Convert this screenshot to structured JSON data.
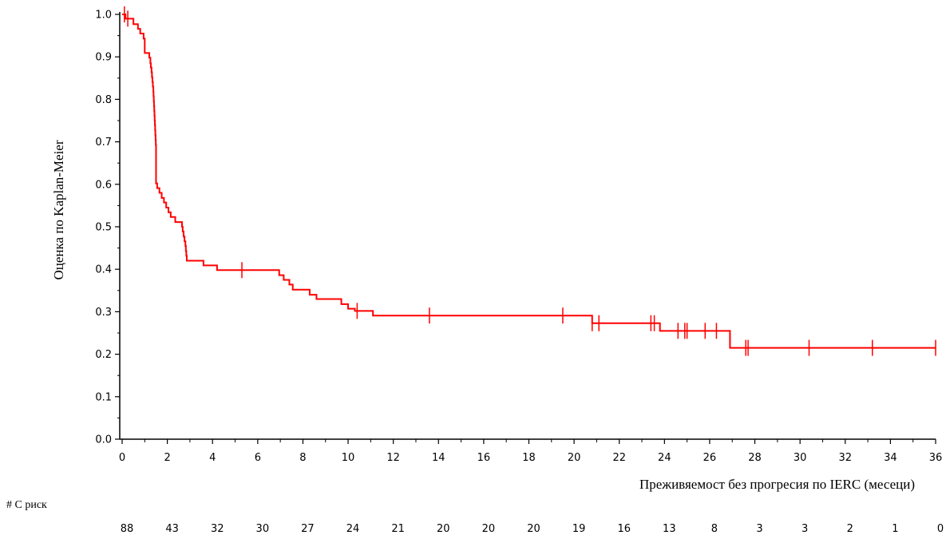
{
  "chart_data": {
    "type": "line",
    "subtype": "kaplan-meier-step",
    "title": "",
    "xlabel": "Преживяемост без прогресия по IERC (месеци)",
    "ylabel": "Оценка по Kaplan-Meier",
    "xlim": [
      0,
      36
    ],
    "ylim": [
      0,
      1.0
    ],
    "x_ticks": [
      0,
      2,
      4,
      6,
      8,
      10,
      12,
      14,
      16,
      18,
      20,
      22,
      24,
      26,
      28,
      30,
      32,
      34,
      36
    ],
    "y_ticks": [
      "0.0",
      "0.1",
      "0.2",
      "0.3",
      "0.4",
      "0.5",
      "0.6",
      "0.7",
      "0.8",
      "0.9",
      "1.0"
    ],
    "grid": false,
    "legend": "none",
    "line_color": "#ff0000",
    "steps": [
      [
        0.0,
        1.0
      ],
      [
        0.15,
        0.99
      ],
      [
        0.5,
        0.977
      ],
      [
        0.7,
        0.966
      ],
      [
        0.8,
        0.955
      ],
      [
        0.95,
        0.943
      ],
      [
        1.0,
        0.932
      ],
      [
        1.0,
        0.92
      ],
      [
        1.0,
        0.909
      ],
      [
        1.2,
        0.898
      ],
      [
        1.25,
        0.885
      ],
      [
        1.27,
        0.875
      ],
      [
        1.3,
        0.864
      ],
      [
        1.32,
        0.852
      ],
      [
        1.34,
        0.841
      ],
      [
        1.36,
        0.83
      ],
      [
        1.38,
        0.818
      ],
      [
        1.39,
        0.807
      ],
      [
        1.4,
        0.795
      ],
      [
        1.41,
        0.784
      ],
      [
        1.42,
        0.773
      ],
      [
        1.43,
        0.761
      ],
      [
        1.44,
        0.75
      ],
      [
        1.45,
        0.739
      ],
      [
        1.46,
        0.727
      ],
      [
        1.47,
        0.716
      ],
      [
        1.48,
        0.705
      ],
      [
        1.49,
        0.693
      ],
      [
        1.5,
        0.682
      ],
      [
        1.5,
        0.67
      ],
      [
        1.5,
        0.659
      ],
      [
        1.5,
        0.648
      ],
      [
        1.5,
        0.636
      ],
      [
        1.5,
        0.625
      ],
      [
        1.5,
        0.614
      ],
      [
        1.5,
        0.602
      ],
      [
        1.55,
        0.591
      ],
      [
        1.65,
        0.58
      ],
      [
        1.75,
        0.568
      ],
      [
        1.85,
        0.557
      ],
      [
        1.95,
        0.545
      ],
      [
        2.05,
        0.534
      ],
      [
        2.15,
        0.523
      ],
      [
        2.35,
        0.511
      ],
      [
        2.65,
        0.5
      ],
      [
        2.68,
        0.489
      ],
      [
        2.72,
        0.477
      ],
      [
        2.76,
        0.466
      ],
      [
        2.8,
        0.455
      ],
      [
        2.82,
        0.443
      ],
      [
        2.84,
        0.432
      ],
      [
        2.86,
        0.42
      ],
      [
        3.6,
        0.409
      ],
      [
        4.2,
        0.398
      ],
      [
        6.95,
        0.386
      ],
      [
        7.15,
        0.375
      ],
      [
        7.4,
        0.364
      ],
      [
        7.55,
        0.352
      ],
      [
        8.3,
        0.34
      ],
      [
        8.6,
        0.33
      ],
      [
        9.7,
        0.318
      ],
      [
        10.0,
        0.307
      ],
      [
        10.3,
        0.302
      ],
      [
        11.1,
        0.291
      ],
      [
        20.8,
        0.273
      ],
      [
        23.8,
        0.255
      ],
      [
        26.9,
        0.215
      ]
    ],
    "end_x": 36,
    "censored": [
      [
        0.1,
        1.0
      ],
      [
        0.25,
        0.99
      ],
      [
        5.3,
        0.398
      ],
      [
        10.4,
        0.302
      ],
      [
        13.6,
        0.291
      ],
      [
        19.5,
        0.291
      ],
      [
        20.8,
        0.273
      ],
      [
        21.1,
        0.273
      ],
      [
        23.4,
        0.273
      ],
      [
        23.55,
        0.273
      ],
      [
        24.6,
        0.255
      ],
      [
        24.9,
        0.255
      ],
      [
        25.0,
        0.255
      ],
      [
        25.8,
        0.255
      ],
      [
        26.3,
        0.255
      ],
      [
        27.6,
        0.215
      ],
      [
        27.7,
        0.215
      ],
      [
        30.4,
        0.215
      ],
      [
        33.2,
        0.215
      ],
      [
        36.0,
        0.215
      ]
    ],
    "at_risk": {
      "title": "# С риск",
      "x": [
        0,
        2,
        4,
        6,
        8,
        10,
        12,
        14,
        16,
        18,
        20,
        22,
        24,
        26,
        28,
        30,
        32,
        34,
        36
      ],
      "counts": [
        "88",
        "43",
        "32",
        "30",
        "27",
        "24",
        "21",
        "20",
        "20",
        "20",
        "19",
        "16",
        "13",
        "8",
        "3",
        "3",
        "2",
        "1",
        "0"
      ]
    }
  }
}
